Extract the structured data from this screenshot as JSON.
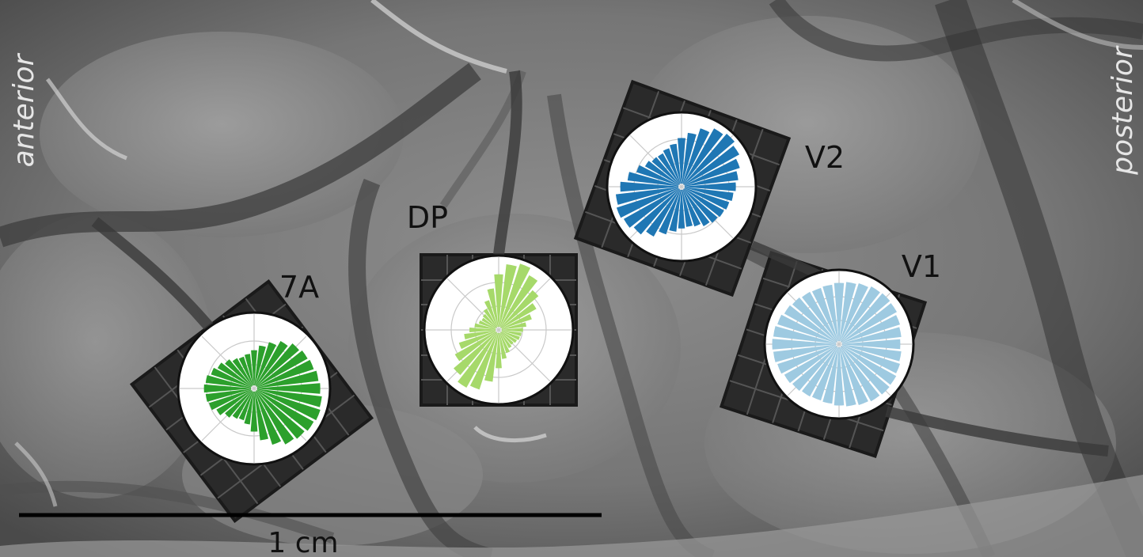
{
  "labels": {
    "anterior": "anterior",
    "posterior": "posterior",
    "scale_bar": "1 cm"
  },
  "arrays": [
    {
      "name": "7A",
      "color": "#2ca02c",
      "radii": [
        0.95,
        0.93,
        0.9,
        0.88,
        0.85,
        0.78,
        0.7,
        0.62,
        0.55,
        0.5,
        0.48,
        0.5,
        0.55,
        0.6,
        0.65,
        0.7,
        0.72,
        0.7,
        0.68,
        0.62,
        0.55,
        0.5,
        0.48,
        0.52,
        0.62,
        0.75,
        0.85,
        0.92,
        0.95,
        0.98,
        1.0,
        0.98
      ]
    },
    {
      "name": "DP",
      "color": "#a6d96a",
      "radii": [
        0.35,
        0.4,
        0.5,
        0.62,
        0.75,
        0.9,
        1.0,
        0.95,
        0.8,
        0.6,
        0.45,
        0.35,
        0.3,
        0.28,
        0.3,
        0.35,
        0.42,
        0.5,
        0.6,
        0.72,
        0.85,
        0.95,
        0.9,
        0.75,
        0.55,
        0.42,
        0.35,
        0.3,
        0.28,
        0.3,
        0.32,
        0.33
      ]
    },
    {
      "name": "V2",
      "color": "#1f77b4",
      "radii": [
        0.78,
        0.82,
        0.88,
        0.95,
        1.0,
        0.96,
        0.88,
        0.78,
        0.7,
        0.62,
        0.58,
        0.55,
        0.56,
        0.6,
        0.68,
        0.78,
        0.88,
        0.95,
        0.98,
        0.95,
        0.9,
        0.82,
        0.72,
        0.65,
        0.6,
        0.58,
        0.6,
        0.65,
        0.68,
        0.7,
        0.72,
        0.75
      ]
    },
    {
      "name": "V1",
      "color": "#9ecae1",
      "radii": [
        0.88,
        0.9,
        0.92,
        0.95,
        0.96,
        0.95,
        0.92,
        0.9,
        0.88,
        0.86,
        0.85,
        0.86,
        0.88,
        0.9,
        0.93,
        0.95,
        0.96,
        0.95,
        0.93,
        0.9,
        0.88,
        0.86,
        0.85,
        0.86,
        0.88,
        0.9,
        0.92,
        0.94,
        0.95,
        0.94,
        0.92,
        0.9
      ]
    }
  ]
}
